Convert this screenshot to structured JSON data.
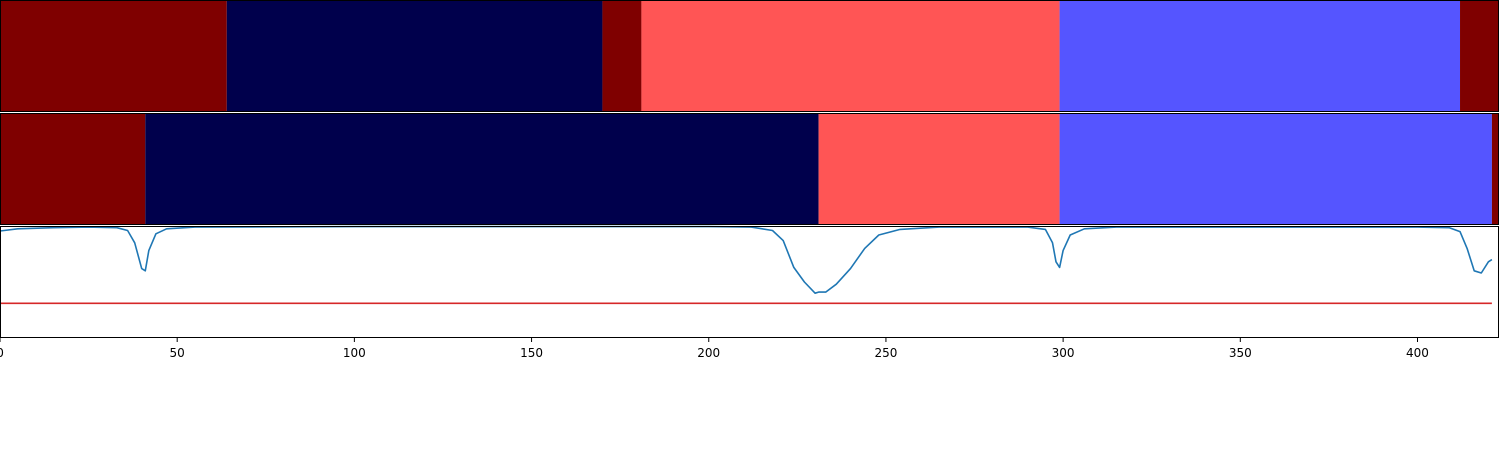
{
  "chart_data": [
    {
      "type": "heatmap",
      "panel": "segmentation-track-1",
      "segments": [
        {
          "start": 0,
          "end": 64,
          "color": "#7f0000"
        },
        {
          "start": 64,
          "end": 170,
          "color": "#00004c"
        },
        {
          "start": 170,
          "end": 181,
          "color": "#7f0000"
        },
        {
          "start": 181,
          "end": 299,
          "color": "#ff5555"
        },
        {
          "start": 299,
          "end": 412,
          "color": "#5555ff"
        },
        {
          "start": 412,
          "end": 423,
          "color": "#7f0000"
        }
      ]
    },
    {
      "type": "heatmap",
      "panel": "segmentation-track-2",
      "segments": [
        {
          "start": 0,
          "end": 41,
          "color": "#7f0000"
        },
        {
          "start": 41,
          "end": 231,
          "color": "#00004c"
        },
        {
          "start": 231,
          "end": 299,
          "color": "#ff5555"
        },
        {
          "start": 299,
          "end": 421,
          "color": "#5555ff"
        },
        {
          "start": 421,
          "end": 423,
          "color": "#7f0000"
        }
      ]
    },
    {
      "type": "line",
      "panel": "score-curve",
      "ylim": [
        0,
        1
      ],
      "series": [
        {
          "color": "#1f77b4",
          "points": [
            [
              0,
              0.955
            ],
            [
              5,
              0.975
            ],
            [
              15,
              0.985
            ],
            [
              25,
              0.99
            ],
            [
              33,
              0.985
            ],
            [
              36,
              0.96
            ],
            [
              38,
              0.85
            ],
            [
              40,
              0.62
            ],
            [
              41,
              0.6
            ],
            [
              42,
              0.78
            ],
            [
              44,
              0.93
            ],
            [
              47,
              0.975
            ],
            [
              55,
              0.99
            ],
            [
              100,
              0.995
            ],
            [
              200,
              0.995
            ],
            [
              212,
              0.99
            ],
            [
              218,
              0.96
            ],
            [
              221,
              0.87
            ],
            [
              224,
              0.63
            ],
            [
              227,
              0.5
            ],
            [
              230,
              0.4
            ],
            [
              231,
              0.41
            ],
            [
              233,
              0.41
            ],
            [
              236,
              0.48
            ],
            [
              240,
              0.62
            ],
            [
              244,
              0.8
            ],
            [
              248,
              0.92
            ],
            [
              254,
              0.97
            ],
            [
              265,
              0.99
            ],
            [
              290,
              0.99
            ],
            [
              295,
              0.97
            ],
            [
              297,
              0.85
            ],
            [
              298,
              0.68
            ],
            [
              299,
              0.63
            ],
            [
              300,
              0.78
            ],
            [
              302,
              0.92
            ],
            [
              306,
              0.975
            ],
            [
              315,
              0.99
            ],
            [
              400,
              0.99
            ],
            [
              409,
              0.985
            ],
            [
              412,
              0.95
            ],
            [
              414,
              0.8
            ],
            [
              416,
              0.6
            ],
            [
              418,
              0.58
            ],
            [
              420,
              0.68
            ],
            [
              421,
              0.7
            ]
          ]
        },
        {
          "color": "#d62728",
          "points": [
            [
              0,
              0.31
            ],
            [
              421,
              0.31
            ]
          ]
        }
      ]
    }
  ],
  "axis": {
    "xlim": [
      0,
      423
    ],
    "ticks": [
      "0",
      "50",
      "100",
      "150",
      "200",
      "250",
      "300",
      "350",
      "400"
    ]
  }
}
